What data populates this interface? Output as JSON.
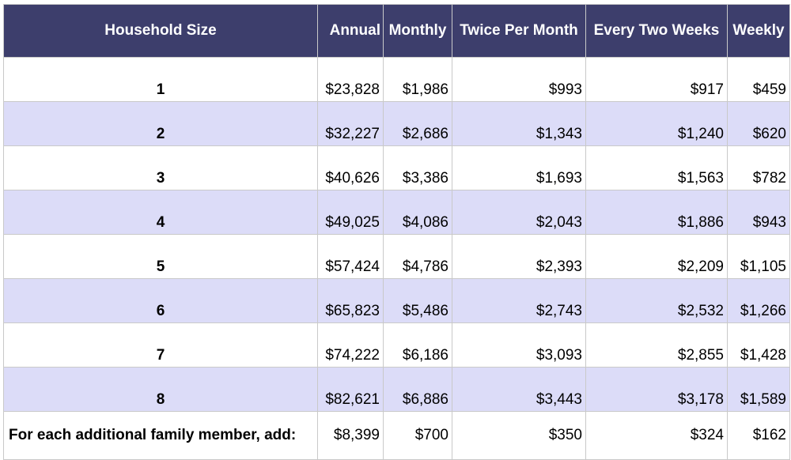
{
  "table": {
    "headers": [
      "Household Size",
      "Annual",
      "Monthly",
      "Twice Per Month",
      "Every Two Weeks",
      "Weekly"
    ],
    "rows": [
      [
        "1",
        "$23,828",
        "$1,986",
        "$993",
        "$917",
        "$459"
      ],
      [
        "2",
        "$32,227",
        "$2,686",
        "$1,343",
        "$1,240",
        "$620"
      ],
      [
        "3",
        "$40,626",
        "$3,386",
        "$1,693",
        "$1,563",
        "$782"
      ],
      [
        "4",
        "$49,025",
        "$4,086",
        "$2,043",
        "$1,886",
        "$943"
      ],
      [
        "5",
        "$57,424",
        "$4,786",
        "$2,393",
        "$2,209",
        "$1,105"
      ],
      [
        "6",
        "$65,823",
        "$5,486",
        "$2,743",
        "$2,532",
        "$1,266"
      ],
      [
        "7",
        "$74,222",
        "$6,186",
        "$3,093",
        "$2,855",
        "$1,428"
      ],
      [
        "8",
        "$82,621",
        "$6,886",
        "$3,443",
        "$3,178",
        "$1,589"
      ],
      [
        "For each additional family member, add:",
        "$8,399",
        "$700",
        "$350",
        "$324",
        "$162"
      ]
    ]
  },
  "colors": {
    "header_bg": "#3d3e6c",
    "header_text": "#ffffff",
    "shaded_row_bg": "#dcdcf8",
    "plain_row_bg": "#ffffff",
    "grid_line": "#c9c9c9"
  }
}
